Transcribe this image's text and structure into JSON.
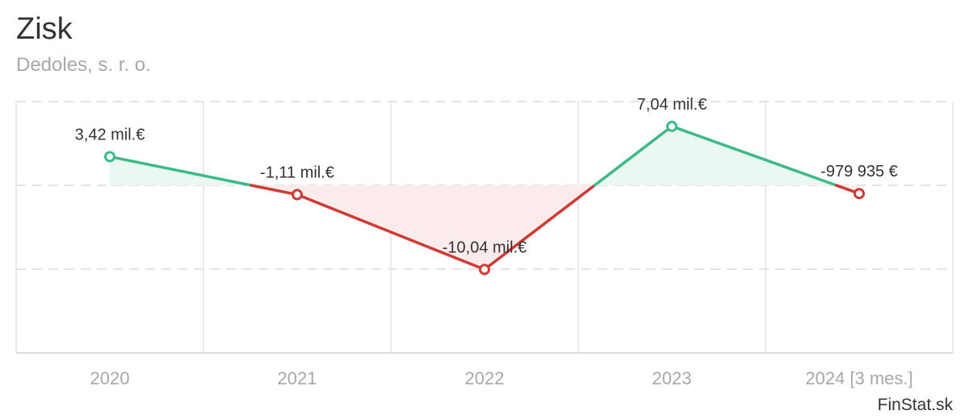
{
  "title": "Zisk",
  "subtitle": "Dedoles, s. r. o.",
  "credit": "FinStat.sk",
  "colors": {
    "positive": "#3dba87",
    "negative": "#d03a35",
    "positive_fill": "#eaf8f1",
    "negative_fill": "#fbebea",
    "grid": "#e3e3e3"
  },
  "chart_data": {
    "type": "line",
    "title": "Zisk",
    "subtitle": "Dedoles, s. r. o.",
    "categories": [
      "2020",
      "2021",
      "2022",
      "2023",
      "2024 [3 mes.]"
    ],
    "values": [
      3.42,
      -1.11,
      -10.04,
      7.04,
      -0.979935
    ],
    "data_labels": [
      "3,42 mil.€",
      "-1,11 mil.€",
      "-10,04 mil.€",
      "7,04 mil.€",
      "-979 935 €"
    ],
    "unit": "mil. €",
    "ylim": [
      -20,
      10
    ],
    "zero_line": 0,
    "grid": true,
    "legend": "none"
  }
}
